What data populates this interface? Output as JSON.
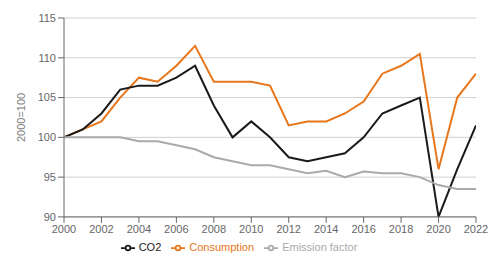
{
  "chart_data": {
    "type": "line",
    "ylabel": "2000=100",
    "x": [
      2000,
      2001,
      2002,
      2003,
      2004,
      2005,
      2006,
      2007,
      2008,
      2009,
      2010,
      2011,
      2012,
      2013,
      2014,
      2015,
      2016,
      2017,
      2018,
      2019,
      2020,
      2021,
      2022
    ],
    "series": [
      {
        "name": "Consumption",
        "color": "#E8761A",
        "values": [
          100,
          101,
          102,
          105,
          107.5,
          107,
          109,
          111.5,
          107,
          107,
          107,
          106.5,
          101.5,
          102,
          102,
          103,
          104.5,
          108,
          109,
          110.5,
          96,
          105,
          108
        ]
      },
      {
        "name": "CO2",
        "color": "#1a1a1a",
        "values": [
          100,
          101,
          103,
          106,
          106.5,
          106.5,
          107.5,
          109,
          104,
          100,
          102,
          100,
          97.5,
          97,
          97.5,
          98,
          100,
          103,
          104,
          105,
          90,
          96,
          101.5
        ]
      },
      {
        "name": "Emission factor",
        "color": "#aaaaaa",
        "values": [
          100,
          100,
          100,
          100,
          99.5,
          99.5,
          99,
          98.5,
          97.5,
          97,
          96.5,
          96.5,
          96,
          95.5,
          95.8,
          95,
          95.7,
          95.5,
          95.5,
          95,
          94,
          93.5,
          93.5
        ]
      }
    ],
    "xlim": [
      2000,
      2022
    ],
    "xticks": [
      2000,
      2002,
      2004,
      2006,
      2008,
      2010,
      2012,
      2014,
      2016,
      2018,
      2020,
      2022
    ],
    "ylim": [
      90,
      115
    ],
    "yticks": [
      90,
      95,
      100,
      105,
      110,
      115
    ],
    "grid": true,
    "legend": "bottom"
  }
}
